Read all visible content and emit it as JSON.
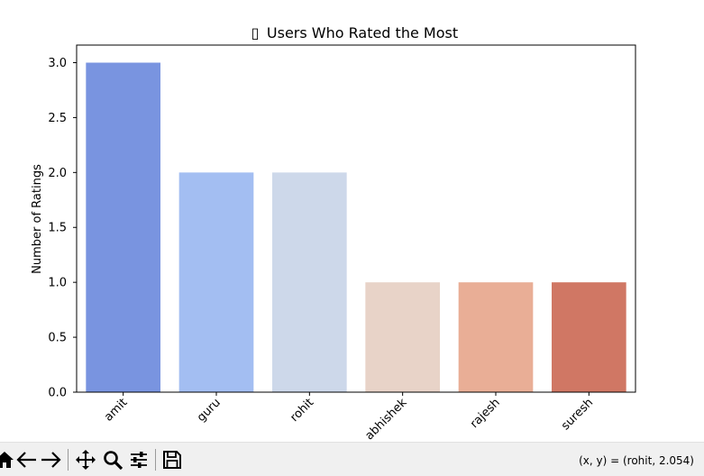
{
  "window": {
    "title_glyph": "▯"
  },
  "chart_data": {
    "type": "bar",
    "title": "Users Who Rated the Most",
    "xlabel": "",
    "ylabel": "Number of Ratings",
    "categories": [
      "amit",
      "guru",
      "rohit",
      "abhishek",
      "rajesh",
      "suresh"
    ],
    "values": [
      3,
      2,
      2,
      1,
      1,
      1
    ],
    "colors": [
      "#7994e0",
      "#a3bef2",
      "#cdd8ea",
      "#e8d3c8",
      "#e9ae96",
      "#d07764"
    ],
    "ylim": [
      0,
      3.16
    ],
    "yticks": [
      0.0,
      0.5,
      1.0,
      1.5,
      2.0,
      2.5,
      3.0
    ],
    "ytick_labels": [
      "0.0",
      "0.5",
      "1.0",
      "1.5",
      "2.0",
      "2.5",
      "3.0"
    ],
    "grid": false,
    "legend": null
  },
  "toolbar": {
    "icons": [
      "home-icon",
      "back-arrow-icon",
      "forward-arrow-icon",
      "pan-icon",
      "zoom-icon",
      "configure-subplots-icon",
      "save-icon"
    ],
    "coords": "(x, y) = (rohit, 2.054)"
  }
}
